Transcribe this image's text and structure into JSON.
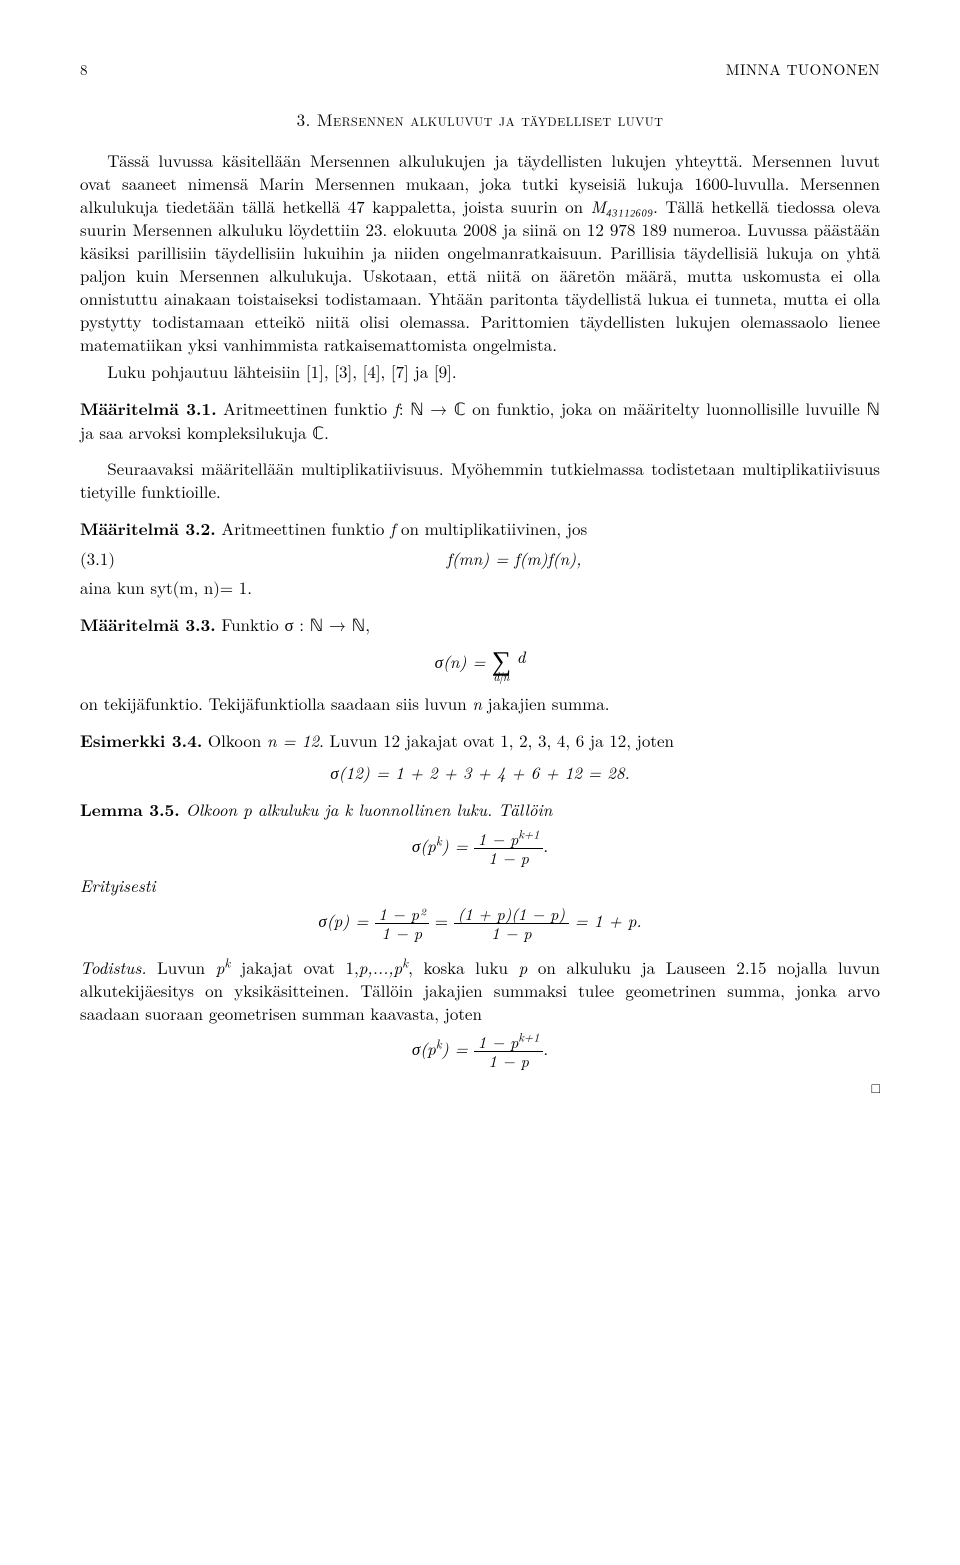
{
  "page_number": "8",
  "author": "MINNA TUONONEN",
  "section_heading": "3. Mersennen alkuluvut ja täydelliset luvut",
  "body": {
    "p1": "Tässä luvussa käsitellään Mersennen alkulukujen ja täydellisten lukujen yhteyttä. Mersennen luvut ovat saaneet nimensä Marin Mersennen mukaan, joka tutki kyseisiä lukuja 1600-luvulla. Mersennen alkulukuja tiedetään tällä hetkellä 47 kappaletta, joista suurin on ",
    "p1_math": "M₄₃₁₁₂₆₀₉",
    "p1b": ". Tällä hetkellä tiedossa oleva suurin Mersennen alkuluku löydettiin 23. elokuuta 2008 ja siinä on 12 978 189 numeroa. Luvussa päästään käsiksi parillisiin täydellisiin lukuihin ja niiden ongelmanratkaisuun. Parillisia täydellisiä lukuja on yhtä paljon kuin Mersennen alkulukuja. Uskotaan, että niitä on ääretön määrä, mutta uskomusta ei olla onnistuttu ainakaan toistaiseksi todistamaan. Yhtään paritonta täydellistä lukua ei tunneta, mutta ei olla pystytty todistamaan etteikö niitä olisi olemassa. Parittomien täydellisten lukujen olemassaolo lienee matematiikan yksi vanhimmista ratkaisemattomista ongelmista.",
    "p2": "Luku pohjautuu lähteisiin [1], [3], [4], [7] ja [9]."
  },
  "def31": {
    "label": "Määritelmä 3.1.",
    "text_a": " Aritmeettinen funktio ",
    "text_b": ": ℕ → ℂ on funktio, joka on määritelty luonnollisille luvuille ℕ ja saa arvoksi kompleksilukuja ℂ."
  },
  "para_after_def31": "Seuraavaksi määritellään multiplikatiivisuus. Myöhemmin tutkielmassa todistetaan multiplikatiivisuus tietyille funktioille.",
  "def32": {
    "label": "Määritelmä 3.2.",
    "text": " Aritmeettinen funktio ",
    "text_tail": " on multiplikatiivinen, jos"
  },
  "eq31_num": "(3.1)",
  "eq31": "f(mn) = f(m)f(n),",
  "eq31_after": "aina kun syt(m, n)= 1.",
  "def33": {
    "label": "Määritelmä 3.3.",
    "text": " Funktio σ : ℕ → ℕ,"
  },
  "sigma_def_lhs": "σ(n) = ",
  "sigma_under": "d|n",
  "sigma_body": "d",
  "def33_after": "on tekijäfunktio. Tekijäfunktiolla saadaan siis luvun ",
  "def33_after_tail": " jakajien summa.",
  "ex34": {
    "label": "Esimerkki 3.4.",
    "text": " Olkoon ",
    "n_eq": "n = 12",
    "text2": ". Luvun 12 jakajat ovat 1, 2, 3, 4, 6 ja 12, joten"
  },
  "ex34_eq": "σ(12) = 1 + 2 + 3 + 4 + 6 + 12 = 28.",
  "lem35": {
    "label": "Lemma 3.5.",
    "text": " Olkoon p alkuluku ja k luonnollinen luku. Tällöin"
  },
  "lem35_eq_lhs": "σ(p",
  "lem35_eq_exp": "k",
  "lem35_eq_mid": ") = ",
  "frac1_num": "1 − p",
  "frac1_num_exp": "k+1",
  "frac1_den": "1 − p",
  "erityisesti": "Erityisesti",
  "erit_eq_a": "σ(p) = ",
  "frac2_num": "1 − p²",
  "frac2_den": "1 − p",
  "erit_eq_mid": " = ",
  "frac3_num": "(1 + p)(1 − p)",
  "frac3_den": "1 − p",
  "erit_eq_tail": " = 1 + p.",
  "proof": {
    "label": "Todistus.",
    "text_a": " Luvun ",
    "pk": "p",
    "pk_exp": "k",
    "text_b": " jakajat ovat 1,",
    "p_seq": "p,...,p",
    "text_c": ", koska luku ",
    "p_var": "p",
    "text_d": " on alkuluku ja Lauseen 2.15 nojalla luvun alkutekijäesitys on yksikäsitteinen. Tällöin jakajien summaksi tulee geometrinen summa, jonka arvo saadaan suoraan geometrisen summan kaavasta, joten"
  },
  "proof_eq_lhs": "σ(p",
  "proof_eq_exp": "k",
  "proof_eq_mid": ") = ",
  "frac4_num": "1 − p",
  "frac4_num_exp": "k+1",
  "frac4_den": "1 − p",
  "proof_eq_tail": "."
}
